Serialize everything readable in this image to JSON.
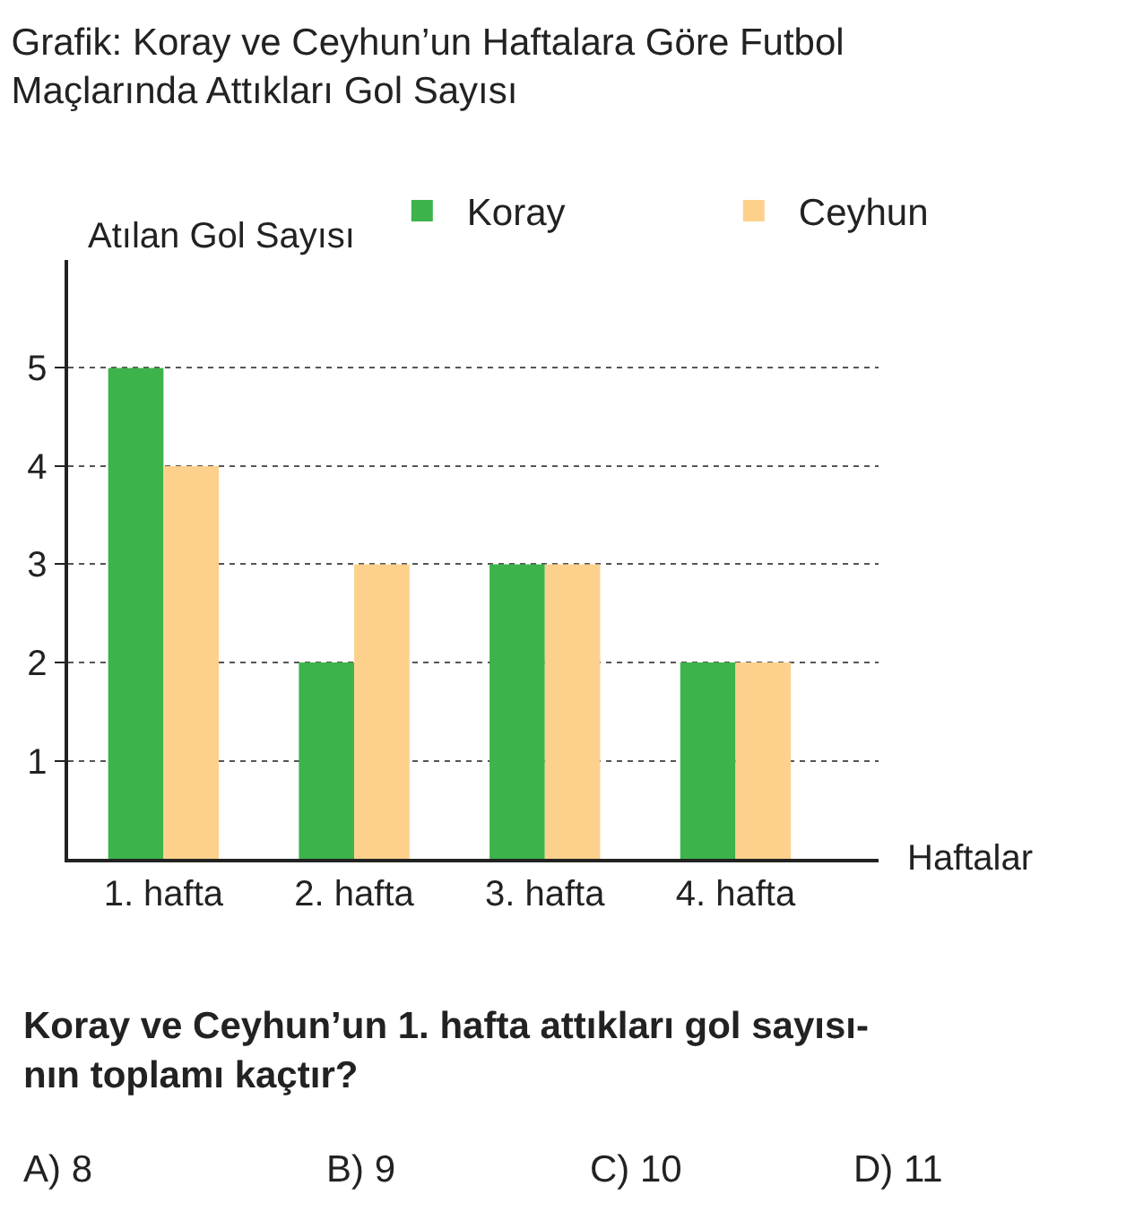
{
  "chart_data": {
    "type": "bar",
    "title": "Grafik: Koray ve Ceyhun’un Haftalara Göre Futbol\nMaçlarında Attıkları Gol Sayısı",
    "xlabel": "Haftalar",
    "ylabel": "Atılan Gol Sayısı",
    "categories": [
      "1. hafta",
      "2. hafta",
      "3. hafta",
      "4. hafta"
    ],
    "series": [
      {
        "name": "Koray",
        "color": "#3cb44b",
        "values": [
          5,
          2,
          3,
          2
        ]
      },
      {
        "name": "Ceyhun",
        "color": "#fdd08c",
        "values": [
          4,
          3,
          3,
          2
        ]
      }
    ],
    "ylim": [
      0,
      6.1
    ],
    "yticks": [
      1,
      2,
      3,
      4,
      5
    ],
    "grid": "y",
    "legend": "top right",
    "annotations": [
      "Koray ve Ceyhun’un 1. hafta attıkları gol sayısı-\nnın toplamı kaçtır?",
      "A) 8",
      "B) 9",
      "C) 10",
      "D) 11"
    ]
  }
}
